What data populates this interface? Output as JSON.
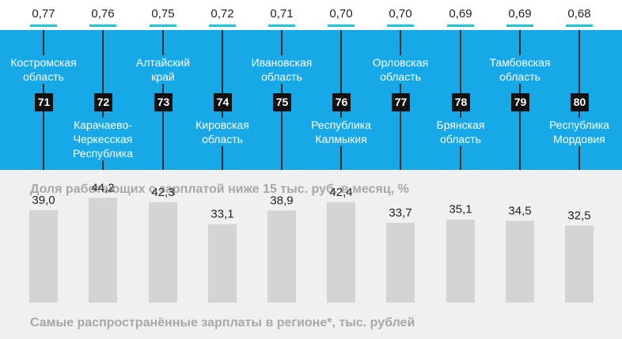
{
  "colors": {
    "band": "#17a8e8",
    "accent": "#18c8d8",
    "bar": "#d4d4d4"
  },
  "regions": [
    {
      "name": "Костромская\nобласть",
      "rank": "71",
      "index": "0,77"
    },
    {
      "name": "Карачаево-\nЧеркесская\nРеспублика",
      "rank": "72",
      "index": "0,76"
    },
    {
      "name": "Алтайский\nкрай",
      "rank": "73",
      "index": "0,75"
    },
    {
      "name": "Кировская\nобласть",
      "rank": "74",
      "index": "0,72"
    },
    {
      "name": "Ивановская\nобласть",
      "rank": "75",
      "index": "0,71"
    },
    {
      "name": "Республика\nКалмыкия",
      "rank": "76",
      "index": "0,70"
    },
    {
      "name": "Орловская\nобласть",
      "rank": "77",
      "index": "0,70"
    },
    {
      "name": "Брянская\nобласть",
      "rank": "78",
      "index": "0,69"
    },
    {
      "name": "Тамбовская\nобласть",
      "rank": "79",
      "index": "0,69"
    },
    {
      "name": "Республика\nМордовия",
      "rank": "80",
      "index": "0,68"
    }
  ],
  "chart_data": {
    "type": "bar",
    "title": "Доля работающих с зарплатой ниже 15 тыс. руб. в месяц, %",
    "categories": [
      "Костромская область",
      "Карачаево-Черкесская Республика",
      "Алтайский край",
      "Кировская область",
      "Ивановская область",
      "Республика Калмыкия",
      "Орловская область",
      "Брянская область",
      "Тамбовская область",
      "Республика Мордовия"
    ],
    "values": [
      39.0,
      44.2,
      42.3,
      33.1,
      38.9,
      42.4,
      33.7,
      35.1,
      34.5,
      32.5
    ],
    "value_labels": [
      "39,0",
      "44,2",
      "42,3",
      "33,1",
      "38,9",
      "42,4",
      "33,7",
      "35,1",
      "34,5",
      "32,5"
    ],
    "ylim": [
      0,
      50
    ]
  },
  "bottom_title": "Самые распространённые зарплаты в регионе*, тыс. рублей"
}
